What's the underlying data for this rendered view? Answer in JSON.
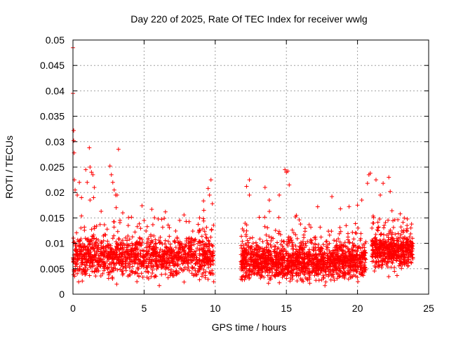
{
  "chart_data": {
    "type": "scatter",
    "title": "Day 220 of 2025, Rate Of TEC Index for receiver wwlg",
    "xlabel": "GPS time / hours",
    "ylabel": "ROTI / TECUs",
    "xlim": [
      0,
      25
    ],
    "ylim": [
      0,
      0.05
    ],
    "xticks": [
      0,
      5,
      10,
      15,
      20,
      25
    ],
    "xtick_labels": [
      "0",
      "5",
      "10",
      "15",
      "20",
      "25"
    ],
    "yticks": [
      0,
      0.005,
      0.01,
      0.015,
      0.02,
      0.025,
      0.03,
      0.035,
      0.04,
      0.045,
      0.05
    ],
    "ytick_labels": [
      "0",
      "0.005",
      "0.01",
      "0.015",
      "0.02",
      "0.025",
      "0.03",
      "0.035",
      "0.04",
      "0.045",
      "0.05"
    ],
    "grid": true,
    "marker": "plus",
    "color": "#ff0000",
    "series": [
      {
        "name": "ROTI",
        "points": [
          [
            0.0,
            0.0485
          ],
          [
            0.0,
            0.0395
          ],
          [
            0.05,
            0.0322
          ],
          [
            0.05,
            0.0302
          ],
          [
            0.08,
            0.0278
          ],
          [
            0.1,
            0.0225
          ],
          [
            0.15,
            0.0205
          ],
          [
            0.3,
            0.0195
          ],
          [
            0.45,
            0.022
          ],
          [
            0.6,
            0.019
          ],
          [
            0.9,
            0.0245
          ],
          [
            1.0,
            0.022
          ],
          [
            1.15,
            0.0288
          ],
          [
            1.2,
            0.025
          ],
          [
            1.3,
            0.024
          ],
          [
            1.4,
            0.0235
          ],
          [
            1.5,
            0.021
          ],
          [
            1.45,
            0.019
          ],
          [
            1.2,
            0.0185
          ],
          [
            2.6,
            0.0252
          ],
          [
            2.7,
            0.0235
          ],
          [
            2.8,
            0.022
          ],
          [
            2.9,
            0.0205
          ],
          [
            3.2,
            0.0285
          ],
          [
            3.1,
            0.0195
          ],
          [
            3.5,
            0.016
          ],
          [
            3.0,
            0.0195
          ],
          [
            5.0,
            0.0145
          ],
          [
            6.5,
            0.0162
          ],
          [
            9.5,
            0.0208
          ],
          [
            9.6,
            0.0195
          ],
          [
            9.7,
            0.0225
          ],
          [
            9.8,
            0.0178
          ],
          [
            9.2,
            0.0165
          ],
          [
            12.2,
            0.0212
          ],
          [
            12.4,
            0.0225
          ],
          [
            12.4,
            0.0195
          ],
          [
            13.5,
            0.021
          ],
          [
            13.8,
            0.0185
          ],
          [
            14.5,
            0.0195
          ],
          [
            14.9,
            0.0245
          ],
          [
            15.0,
            0.024
          ],
          [
            15.1,
            0.0242
          ],
          [
            15.2,
            0.0215
          ],
          [
            15.7,
            0.0155
          ],
          [
            17.2,
            0.0172
          ],
          [
            18.2,
            0.0192
          ],
          [
            18.8,
            0.0168
          ],
          [
            19.2,
            0.0135
          ],
          [
            20.0,
            0.0175
          ],
          [
            20.3,
            0.0185
          ],
          [
            20.7,
            0.0218
          ],
          [
            20.8,
            0.0235
          ],
          [
            20.9,
            0.0238
          ],
          [
            21.3,
            0.0225
          ],
          [
            21.6,
            0.0195
          ],
          [
            21.8,
            0.0218
          ],
          [
            22.2,
            0.023
          ],
          [
            22.3,
            0.0202
          ],
          [
            23.0,
            0.0158
          ],
          [
            23.5,
            0.0148
          ],
          [
            23.8,
            0.0138
          ]
        ]
      }
    ],
    "segments": [
      {
        "x0": 0.0,
        "x1": 9.9,
        "base": 0.0075,
        "spread": 0.0075,
        "density": 1300
      },
      {
        "x0": 11.8,
        "x1": 20.6,
        "base": 0.0065,
        "spread": 0.0065,
        "density": 1500
      },
      {
        "x0": 21.0,
        "x1": 23.9,
        "base": 0.0085,
        "spread": 0.006,
        "density": 500
      }
    ]
  }
}
